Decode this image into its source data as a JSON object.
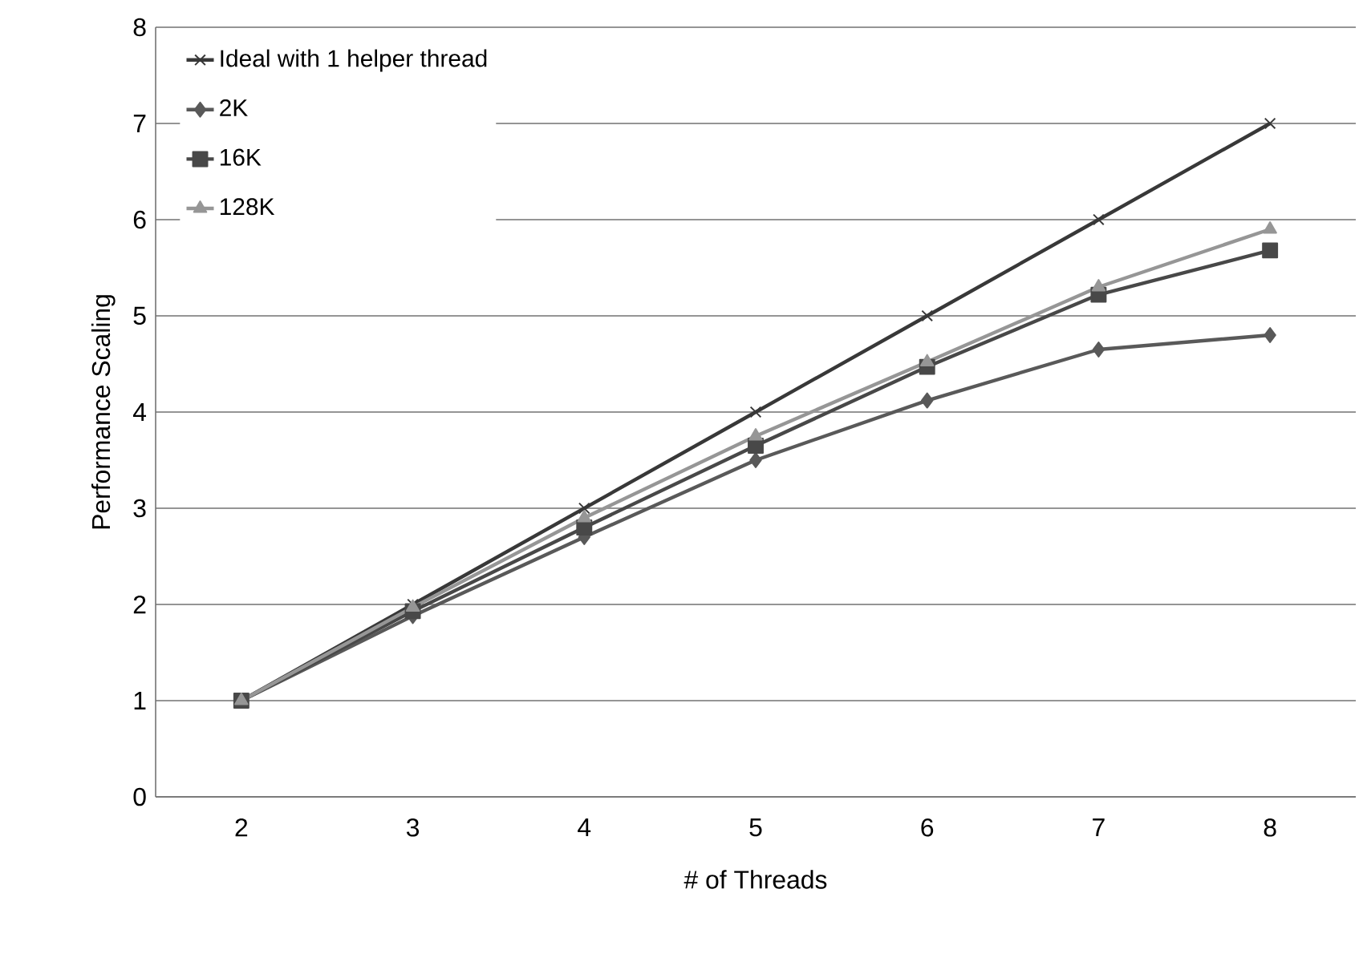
{
  "chart_data": {
    "type": "line",
    "xlabel": "# of Threads",
    "ylabel": "Performance Scaling",
    "categories": [
      "2",
      "3",
      "4",
      "5",
      "6",
      "7",
      "8"
    ],
    "ylim": [
      0,
      8
    ],
    "yticks": [
      0,
      1,
      2,
      3,
      4,
      5,
      6,
      7,
      8
    ],
    "grid": "y",
    "legend": "top left",
    "line_style": "solid",
    "series": [
      {
        "name": "Ideal with 1 helper thread",
        "color": "#383838",
        "marker": "cross",
        "values": [
          1,
          2,
          3,
          4,
          5,
          6,
          7
        ]
      },
      {
        "name": "2K",
        "color": "#595959",
        "marker": "diamond",
        "values": [
          1,
          1.88,
          2.7,
          3.5,
          4.12,
          4.65,
          4.8
        ]
      },
      {
        "name": "16K",
        "color": "#484848",
        "marker": "square",
        "values": [
          1,
          1.93,
          2.8,
          3.65,
          4.47,
          5.22,
          5.68
        ]
      },
      {
        "name": "128K",
        "color": "#969696",
        "marker": "triangle",
        "values": [
          1,
          1.97,
          2.9,
          3.75,
          4.52,
          5.3,
          5.9
        ]
      }
    ]
  }
}
